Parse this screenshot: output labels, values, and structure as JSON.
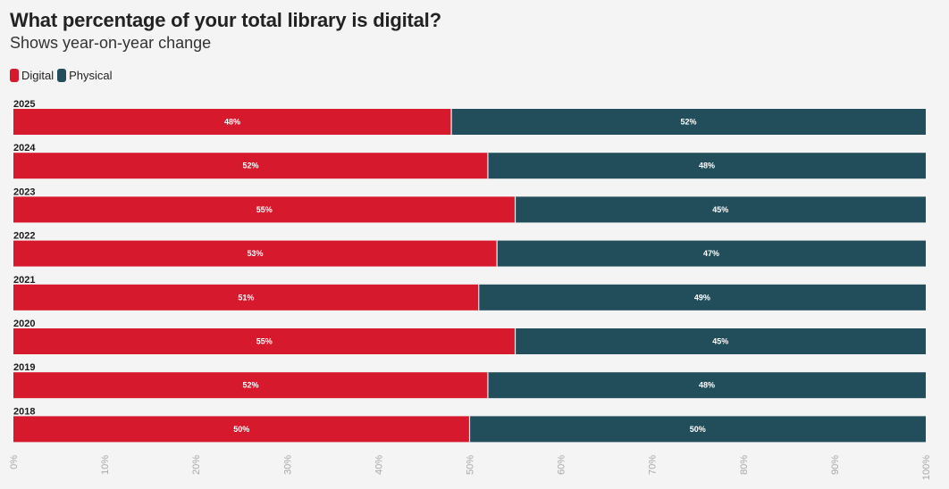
{
  "title": "What percentage of your total library is digital?",
  "subtitle": "Shows year-on-year change",
  "legend": {
    "digital_label": "Digital",
    "physical_label": "Physical"
  },
  "colors": {
    "digital": "#d7192d",
    "physical": "#224e5c",
    "background": "#f4f4f4"
  },
  "chart_data": {
    "type": "bar",
    "orientation": "horizontal",
    "stacked": true,
    "title": "What percentage of your total library is digital?",
    "subtitle": "Shows year-on-year change",
    "categories": [
      "2025",
      "2024",
      "2023",
      "2022",
      "2021",
      "2020",
      "2019",
      "2018"
    ],
    "series": [
      {
        "name": "Digital",
        "values": [
          48,
          52,
          55,
          53,
          51,
          55,
          52,
          50
        ],
        "labels": [
          "48%",
          "52%",
          "55%",
          "53%",
          "51%",
          "55%",
          "52%",
          "50%"
        ]
      },
      {
        "name": "Physical",
        "values": [
          52,
          48,
          45,
          47,
          49,
          45,
          48,
          50
        ],
        "labels": [
          "52%",
          "48%",
          "45%",
          "47%",
          "49%",
          "45%",
          "48%",
          "50%"
        ]
      }
    ],
    "xlim": [
      0,
      100
    ],
    "x_ticks": [
      "0%",
      "10%",
      "20%",
      "30%",
      "40%",
      "50%",
      "60%",
      "70%",
      "80%",
      "90%",
      "100%"
    ],
    "legend_position": "top-left",
    "grid": false
  }
}
